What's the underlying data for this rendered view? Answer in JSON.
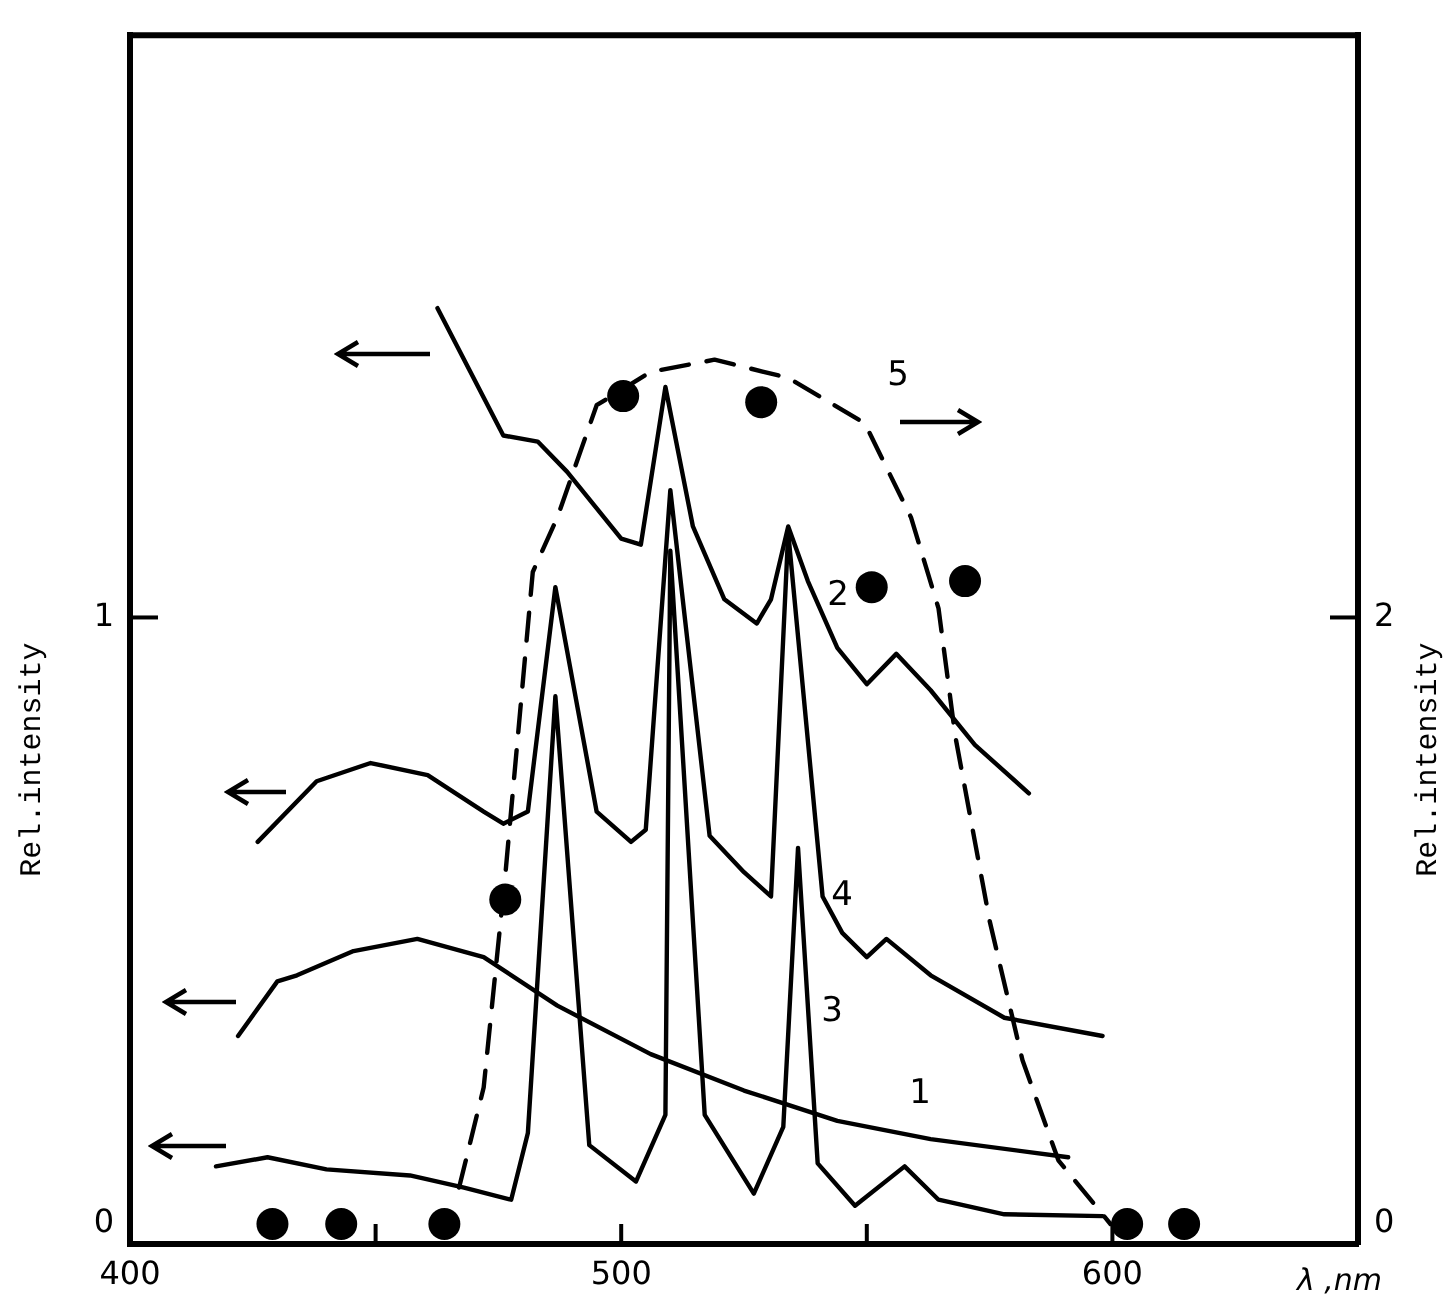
{
  "chart_data": {
    "type": "line",
    "xlabel": "λ ,nm",
    "ylabel": "Rel.intensity",
    "y2label": "Rel.intensity",
    "xlim": [
      400,
      650
    ],
    "xticks": [
      400,
      {
        "value": 450,
        "label": null
      },
      500,
      {
        "value": 550,
        "label": null
      },
      600
    ],
    "ylim": [
      -0.033,
      1.96
    ],
    "yticks": [
      0,
      1
    ],
    "y2lim": [
      -0.066,
      3.92
    ],
    "y2ticks": [
      0,
      2
    ],
    "grid": false,
    "legend": false,
    "marker": "none",
    "line_style": "solid",
    "annotations": [
      "1",
      "2",
      "3",
      "4",
      "5"
    ],
    "series": [
      {
        "color": "#000000",
        "x": [
          422,
          430,
          434,
          445.5,
          458.5,
          472,
          487,
          506,
          525,
          544,
          563,
          591
        ],
        "values": [
          0.31,
          0.4,
          0.41,
          0.45,
          0.47,
          0.44,
          0.36,
          0.28,
          0.22,
          0.17,
          0.14,
          0.11
        ]
      },
      {
        "color": "#000000",
        "x": [
          462.6,
          476,
          483,
          489,
          500,
          504,
          509,
          514.6,
          521,
          527.6,
          530.5,
          534,
          538,
          544,
          550,
          556,
          563,
          572,
          583
        ],
        "values": [
          1.51,
          1.3,
          1.29,
          1.24,
          1.13,
          1.12,
          1.38,
          1.15,
          1.03,
          0.99,
          1.03,
          1.15,
          1.06,
          0.95,
          0.89,
          0.94,
          0.88,
          0.79,
          0.71
        ]
      },
      {
        "color": "#000000",
        "x": [
          417.5,
          428,
          440,
          457,
          468,
          477.6,
          481,
          486.6,
          493.5,
          503,
          509,
          510,
          517,
          527,
          533,
          536,
          540,
          547.6,
          557.7,
          564.6,
          578,
          598
        ],
        "values": [
          0.095,
          0.11,
          0.09,
          0.08,
          0.06,
          0.04,
          0.15,
          0.87,
          0.13,
          0.07,
          0.18,
          1.11,
          0.18,
          0.05,
          0.16,
          0.62,
          0.1,
          0.03,
          0.095,
          0.04,
          0.016,
          0.013
        ]
      },
      {
        "color": "#000000",
        "x": [
          426,
          438,
          449,
          460.6,
          472,
          476,
          481,
          486.6,
          495,
          502,
          505,
          510,
          518,
          525,
          530.5,
          534,
          541,
          545,
          550,
          554,
          563,
          578,
          598
        ],
        "values": [
          0.63,
          0.73,
          0.76,
          0.74,
          0.68,
          0.66,
          0.68,
          1.05,
          0.68,
          0.63,
          0.65,
          1.21,
          0.64,
          0.58,
          0.54,
          1.14,
          0.54,
          0.48,
          0.44,
          0.47,
          0.41,
          0.34,
          0.31
        ]
      },
      {
        "color": "#000000",
        "axis": "y2",
        "line_style": "dashed",
        "x": [
          467,
          472,
          476.4,
          482,
          487,
          495,
          506,
          519,
          534,
          549.6,
          559,
          564.6,
          568,
          575,
          581.7,
          589,
          599.6
        ],
        "values": [
          0.12,
          0.45,
          1.15,
          2.15,
          2.33,
          2.7,
          2.81,
          2.85,
          2.79,
          2.64,
          2.33,
          2.03,
          1.61,
          1.0,
          0.54,
          0.21,
          0
        ]
      },
      {
        "type": "scatter",
        "color": "#000000",
        "axis": "y2",
        "marker": "circle",
        "x": [
          429,
          443,
          464,
          476.4,
          500.4,
          528.5,
          551,
          570,
          603,
          614.6
        ],
        "values": [
          0,
          0,
          0,
          1.07,
          2.73,
          2.71,
          2.1,
          2.12,
          0,
          0
        ]
      }
    ]
  }
}
